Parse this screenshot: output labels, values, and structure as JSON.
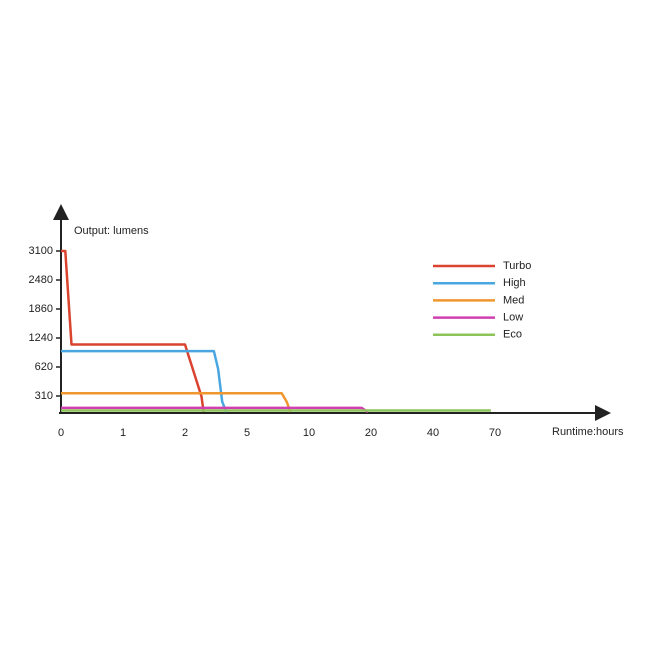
{
  "chart_data": {
    "type": "line",
    "ylabel": "Output: lumens",
    "xlabel": "Runtime:hours",
    "xlim": [
      0,
      70
    ],
    "xticks": [
      0,
      1,
      2,
      5,
      10,
      20,
      40,
      70
    ],
    "ylim": [
      0,
      3100
    ],
    "yticks": [
      310,
      620,
      1240,
      1860,
      2480,
      3100
    ],
    "legend": "upper right",
    "series": [
      {
        "name": "Turbo",
        "color": "#d9432f",
        "x": [
          0,
          0.07,
          0.17,
          2,
          2.8,
          2.9
        ],
        "values": [
          3100,
          3100,
          1100,
          1100,
          300,
          0
        ]
      },
      {
        "name": "High",
        "color": "#4aa6e0",
        "x": [
          0,
          3.4,
          3.6,
          3.8,
          4.0
        ],
        "values": [
          960,
          960,
          600,
          200,
          0
        ]
      },
      {
        "name": "Med",
        "color": "#f0962e",
        "x": [
          0,
          7.8,
          8.2,
          8.5
        ],
        "values": [
          340,
          340,
          200,
          0
        ]
      },
      {
        "name": "Low",
        "color": "#d13fb0",
        "x": [
          0,
          18.5,
          19.5
        ],
        "values": [
          80,
          80,
          0
        ]
      },
      {
        "name": "Eco",
        "color": "#8dc45a",
        "x": [
          0,
          68
        ],
        "values": [
          30,
          30
        ]
      }
    ]
  }
}
